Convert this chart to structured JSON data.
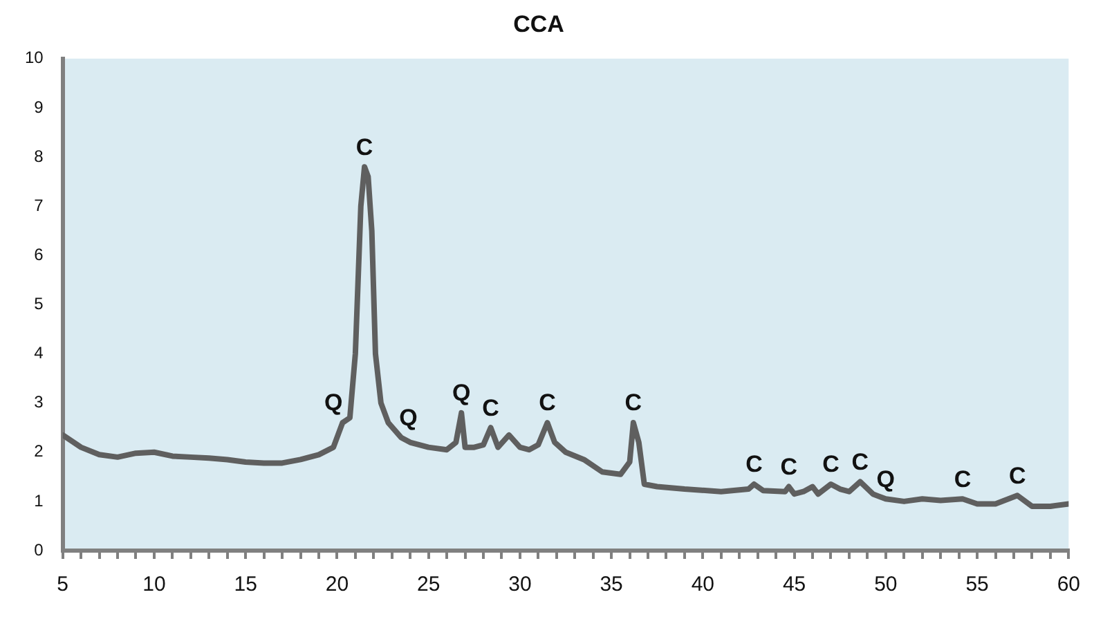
{
  "chart_data": {
    "type": "line",
    "title": "CCA",
    "x": [
      5,
      6,
      7,
      8,
      9,
      10,
      11,
      12,
      13,
      14,
      15,
      16,
      17,
      18,
      19,
      19.8,
      20.3,
      20.7,
      21.0,
      21.3,
      21.5,
      21.7,
      21.9,
      22.1,
      22.4,
      22.8,
      23.5,
      24,
      25,
      26,
      26.5,
      26.8,
      27.0,
      27.5,
      28,
      28.4,
      28.8,
      29.4,
      30,
      30.5,
      31,
      31.5,
      31.9,
      32.5,
      33.5,
      34.5,
      35.5,
      36.0,
      36.2,
      36.5,
      36.8,
      37.5,
      39,
      41,
      42.5,
      42.8,
      43.3,
      44.5,
      44.7,
      45.0,
      45.5,
      46.0,
      46.3,
      47.0,
      47.5,
      48.0,
      48.6,
      49.3,
      50,
      51,
      52,
      53,
      54.2,
      55,
      56,
      57.2,
      58,
      59,
      60
    ],
    "series": [
      {
        "color": "#5f5f5f",
        "values": [
          2.35,
          2.1,
          1.95,
          1.9,
          1.98,
          2.0,
          1.92,
          1.9,
          1.88,
          1.85,
          1.8,
          1.78,
          1.78,
          1.85,
          1.95,
          2.1,
          2.6,
          2.7,
          4.0,
          7.0,
          7.8,
          7.6,
          6.5,
          4.0,
          3.0,
          2.6,
          2.3,
          2.2,
          2.1,
          2.05,
          2.2,
          2.8,
          2.1,
          2.1,
          2.15,
          2.5,
          2.1,
          2.35,
          2.1,
          2.05,
          2.15,
          2.6,
          2.2,
          2.0,
          1.85,
          1.6,
          1.55,
          1.8,
          2.6,
          2.2,
          1.35,
          1.3,
          1.25,
          1.2,
          1.25,
          1.35,
          1.22,
          1.2,
          1.3,
          1.15,
          1.2,
          1.3,
          1.15,
          1.35,
          1.25,
          1.2,
          1.4,
          1.15,
          1.05,
          1.0,
          1.05,
          1.02,
          1.05,
          0.95,
          0.95,
          1.12,
          0.9,
          0.9,
          0.95
        ]
      }
    ],
    "xlim": [
      5,
      60
    ],
    "xticks": [
      5,
      {
        "value": 6,
        "label": null
      },
      {
        "value": 7,
        "label": null
      },
      {
        "value": 8,
        "label": null
      },
      {
        "value": 9,
        "label": null
      },
      10,
      {
        "value": 11,
        "label": null
      },
      {
        "value": 12,
        "label": null
      },
      {
        "value": 13,
        "label": null
      },
      {
        "value": 14,
        "label": null
      },
      15,
      {
        "value": 16,
        "label": null
      },
      {
        "value": 17,
        "label": null
      },
      {
        "value": 18,
        "label": null
      },
      {
        "value": 19,
        "label": null
      },
      20,
      {
        "value": 21,
        "label": null
      },
      {
        "value": 22,
        "label": null
      },
      {
        "value": 23,
        "label": null
      },
      {
        "value": 24,
        "label": null
      },
      25,
      {
        "value": 26,
        "label": null
      },
      {
        "value": 27,
        "label": null
      },
      {
        "value": 28,
        "label": null
      },
      {
        "value": 29,
        "label": null
      },
      30,
      {
        "value": 31,
        "label": null
      },
      {
        "value": 32,
        "label": null
      },
      {
        "value": 33,
        "label": null
      },
      {
        "value": 34,
        "label": null
      },
      35,
      {
        "value": 36,
        "label": null
      },
      {
        "value": 37,
        "label": null
      },
      {
        "value": 38,
        "label": null
      },
      {
        "value": 39,
        "label": null
      },
      40,
      {
        "value": 41,
        "label": null
      },
      {
        "value": 42,
        "label": null
      },
      {
        "value": 43,
        "label": null
      },
      {
        "value": 44,
        "label": null
      },
      45,
      {
        "value": 46,
        "label": null
      },
      {
        "value": 47,
        "label": null
      },
      {
        "value": 48,
        "label": null
      },
      {
        "value": 49,
        "label": null
      },
      50,
      {
        "value": 51,
        "label": null
      },
      {
        "value": 52,
        "label": null
      },
      {
        "value": 53,
        "label": null
      },
      {
        "value": 54,
        "label": null
      },
      55,
      {
        "value": 56,
        "label": null
      },
      {
        "value": 57,
        "label": null
      },
      {
        "value": 58,
        "label": null
      },
      {
        "value": 59,
        "label": null
      },
      60
    ],
    "ylim": [
      0,
      10
    ],
    "yticks": [
      0,
      1,
      2,
      3,
      4,
      5,
      6,
      7,
      8,
      9,
      10
    ],
    "grid": false,
    "legend": false,
    "marker": "none",
    "line_style": "solid",
    "annotations": [
      {
        "text": "Q",
        "x": 19.8,
        "y": 2.6
      },
      {
        "text": "C",
        "x": 21.5,
        "y": 7.8
      },
      {
        "text": "Q",
        "x": 23.9,
        "y": 2.3
      },
      {
        "text": "Q",
        "x": 26.8,
        "y": 2.8
      },
      {
        "text": "C",
        "x": 28.4,
        "y": 2.5
      },
      {
        "text": "C",
        "x": 31.5,
        "y": 2.6
      },
      {
        "text": "C",
        "x": 36.2,
        "y": 2.6
      },
      {
        "text": "C",
        "x": 42.8,
        "y": 1.35
      },
      {
        "text": "C",
        "x": 44.7,
        "y": 1.3
      },
      {
        "text": "C",
        "x": 47.0,
        "y": 1.35
      },
      {
        "text": "C",
        "x": 48.6,
        "y": 1.4
      },
      {
        "text": "Q",
        "x": 50.0,
        "y": 1.05
      },
      {
        "text": "C",
        "x": 54.2,
        "y": 1.05
      },
      {
        "text": "C",
        "x": 57.2,
        "y": 1.12
      }
    ]
  }
}
